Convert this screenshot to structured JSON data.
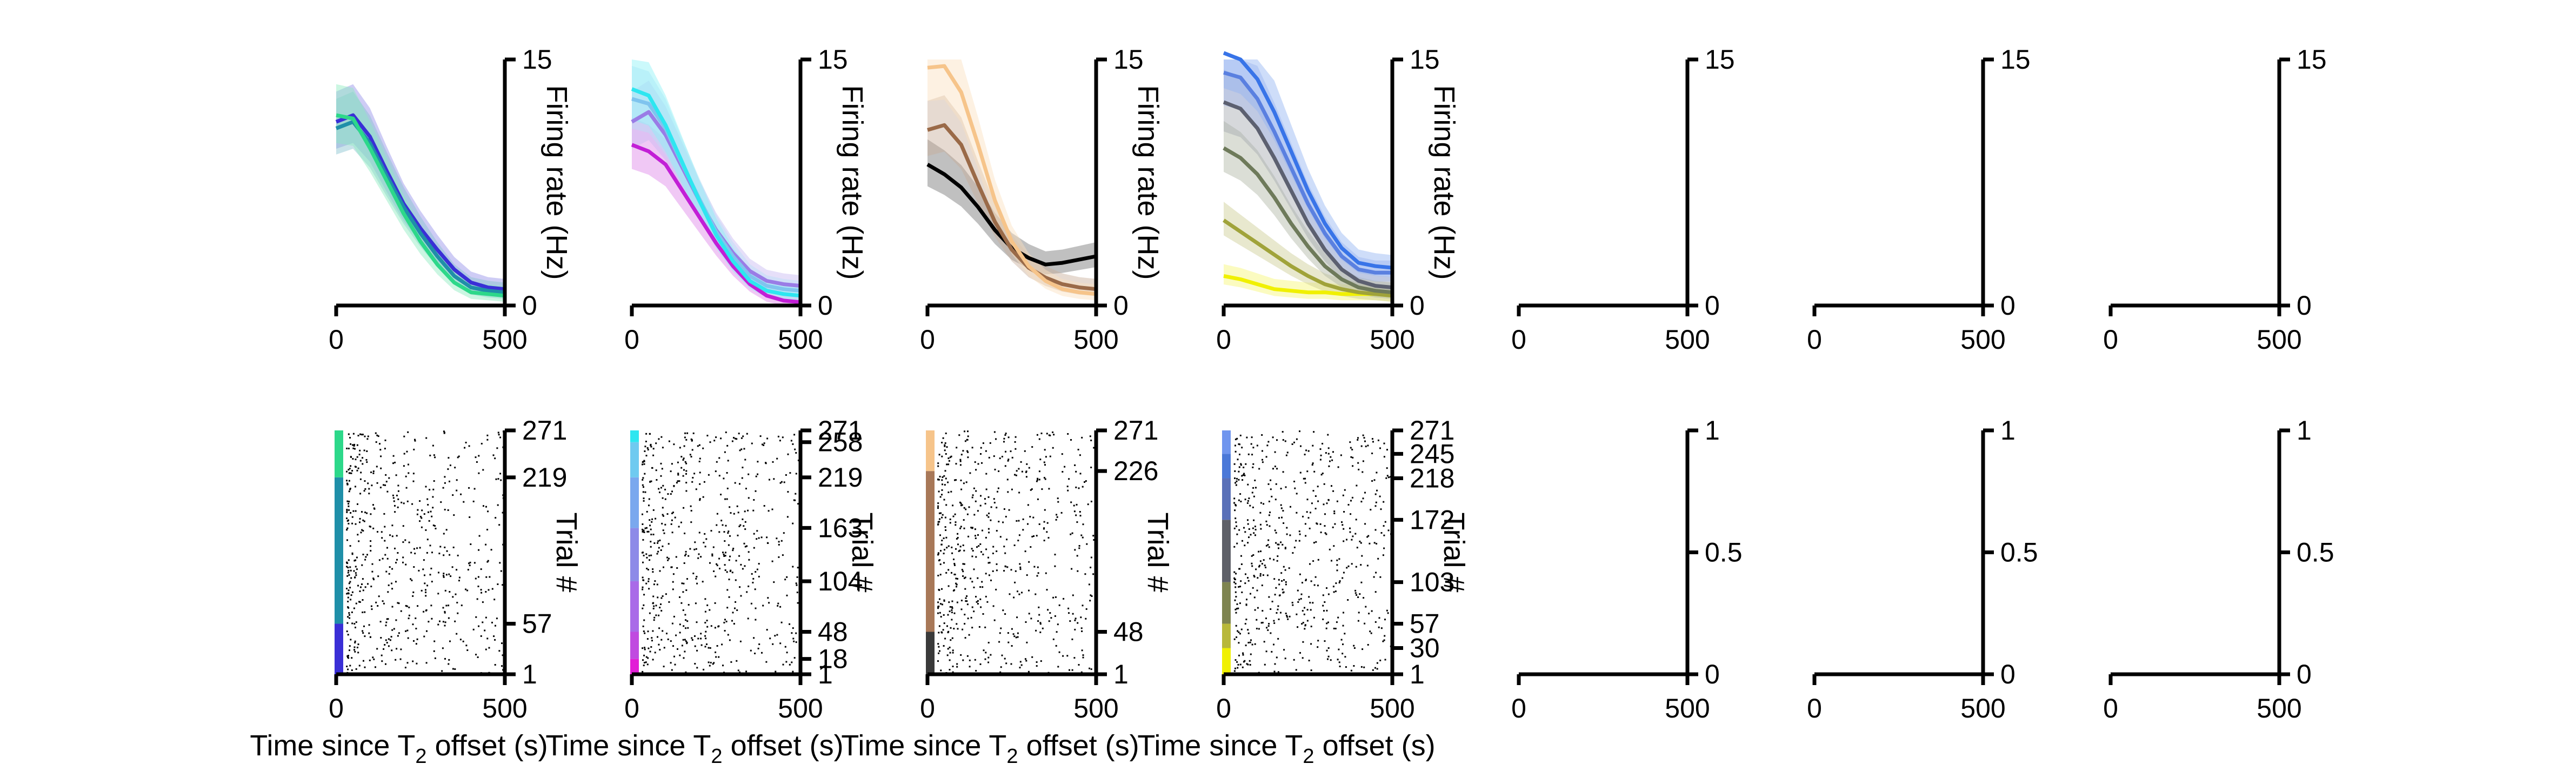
{
  "labels": {
    "ylabel_rate": "Firing rate (Hz)",
    "ylabel_trial": "Trial #",
    "xlabel_prefix": "Time since T",
    "xlabel_sub": "2",
    "xlabel_suffix": " offset (s)"
  },
  "chart_data": [
    {
      "type": "line",
      "panel": "rate-1",
      "xlim": [
        0,
        500
      ],
      "ylim": [
        0,
        15
      ],
      "xticks": [
        "0",
        "500"
      ],
      "yticks": [
        "0",
        "15"
      ],
      "ylabel": "Firing rate (Hz)",
      "x": [
        0,
        50,
        100,
        150,
        200,
        250,
        300,
        350,
        400,
        450,
        500
      ],
      "series": [
        {
          "color": "#3a2fd6",
          "values": [
            11.2,
            11.6,
            10.3,
            8.2,
            6.2,
            4.7,
            3.4,
            2.2,
            1.4,
            1.1,
            1.0
          ]
        },
        {
          "color": "#1f8fa8",
          "values": [
            10.8,
            11.2,
            9.9,
            7.9,
            6.0,
            4.4,
            3.0,
            1.8,
            1.1,
            0.9,
            0.8
          ]
        },
        {
          "color": "#2dd88a",
          "values": [
            11.6,
            11.4,
            9.6,
            7.6,
            5.6,
            3.9,
            2.5,
            1.4,
            0.8,
            0.7,
            0.6
          ]
        }
      ]
    },
    {
      "type": "line",
      "panel": "rate-2",
      "xlim": [
        0,
        500
      ],
      "ylim": [
        0,
        15
      ],
      "xticks": [
        "0",
        "500"
      ],
      "yticks": [
        "0",
        "15"
      ],
      "ylabel": "Firing rate (Hz)",
      "x": [
        0,
        50,
        100,
        150,
        200,
        250,
        300,
        350,
        400,
        450,
        500
      ],
      "series": [
        {
          "color": "#c21fd6",
          "values": [
            9.8,
            9.4,
            8.6,
            7.0,
            5.4,
            3.8,
            2.4,
            1.3,
            0.6,
            0.3,
            0.2
          ]
        },
        {
          "color": "#9a7ce6",
          "values": [
            11.2,
            11.8,
            10.4,
            8.4,
            6.4,
            4.6,
            3.2,
            2.1,
            1.5,
            1.3,
            1.2
          ]
        },
        {
          "color": "#7fc4ee",
          "values": [
            12.6,
            12.3,
            10.8,
            8.6,
            6.5,
            4.5,
            3.0,
            1.8,
            1.2,
            1.0,
            0.9
          ]
        },
        {
          "color": "#2ee6f0",
          "values": [
            13.2,
            12.8,
            11.0,
            8.7,
            6.4,
            4.3,
            2.7,
            1.5,
            0.9,
            0.7,
            0.6
          ]
        }
      ]
    },
    {
      "type": "line",
      "panel": "rate-3",
      "xlim": [
        0,
        500
      ],
      "ylim": [
        0,
        15
      ],
      "xticks": [
        "0",
        "500"
      ],
      "yticks": [
        "0",
        "15"
      ],
      "ylabel": "Firing rate (Hz)",
      "x": [
        0,
        50,
        100,
        150,
        200,
        250,
        300,
        350,
        400,
        450,
        500
      ],
      "series": [
        {
          "color": "#000000",
          "values": [
            8.6,
            8.0,
            7.2,
            6.0,
            4.6,
            3.5,
            2.9,
            2.5,
            2.6,
            2.8,
            3.0
          ]
        },
        {
          "color": "#9a6a48",
          "values": [
            10.7,
            11.0,
            9.8,
            7.4,
            5.1,
            3.4,
            2.3,
            1.7,
            1.3,
            1.1,
            1.0
          ]
        },
        {
          "color": "#f6c48a",
          "values": [
            14.5,
            14.6,
            13.0,
            9.8,
            6.4,
            3.9,
            2.4,
            1.5,
            1.0,
            0.8,
            0.7
          ]
        }
      ]
    },
    {
      "type": "line",
      "panel": "rate-4",
      "xlim": [
        0,
        500
      ],
      "ylim": [
        0,
        15
      ],
      "xticks": [
        "0",
        "500"
      ],
      "yticks": [
        "0",
        "15"
      ],
      "ylabel": "Firing rate (Hz)",
      "x": [
        0,
        50,
        100,
        150,
        200,
        250,
        300,
        350,
        400,
        450,
        500
      ],
      "series": [
        {
          "color": "#f0f000",
          "values": [
            1.8,
            1.6,
            1.3,
            1.0,
            0.9,
            0.8,
            0.8,
            0.7,
            0.7,
            0.7,
            0.6
          ]
        },
        {
          "color": "#a0a33a",
          "values": [
            5.2,
            4.5,
            3.8,
            3.1,
            2.4,
            1.8,
            1.3,
            1.0,
            0.8,
            0.7,
            0.6
          ]
        },
        {
          "color": "#6e7a5a",
          "values": [
            9.6,
            9.0,
            8.0,
            6.6,
            5.0,
            3.6,
            2.4,
            1.6,
            1.1,
            0.9,
            0.8
          ]
        },
        {
          "color": "#5c6070",
          "values": [
            12.4,
            12.0,
            10.8,
            9.0,
            7.0,
            5.0,
            3.4,
            2.2,
            1.5,
            1.2,
            1.1
          ]
        },
        {
          "color": "#5a80e0",
          "values": [
            14.2,
            13.9,
            12.6,
            10.6,
            8.4,
            6.2,
            4.4,
            3.0,
            2.2,
            2.0,
            2.0
          ]
        },
        {
          "color": "#3874e8",
          "values": [
            15.4,
            15.0,
            13.8,
            11.8,
            9.4,
            7.0,
            5.0,
            3.5,
            2.6,
            2.4,
            2.3
          ]
        }
      ]
    },
    {
      "type": "line",
      "panel": "rate-5",
      "empty": true,
      "xlim": [
        0,
        500
      ],
      "ylim": [
        0,
        15
      ],
      "xticks": [
        "0",
        "500"
      ],
      "yticks": [
        "0",
        "15"
      ],
      "series": []
    },
    {
      "type": "line",
      "panel": "rate-6",
      "empty": true,
      "xlim": [
        0,
        500
      ],
      "ylim": [
        0,
        15
      ],
      "xticks": [
        "0",
        "500"
      ],
      "yticks": [
        "0",
        "15"
      ],
      "series": []
    },
    {
      "type": "line",
      "panel": "rate-7",
      "empty": true,
      "xlim": [
        0,
        500
      ],
      "ylim": [
        0,
        15
      ],
      "xticks": [
        "0",
        "500"
      ],
      "yticks": [
        "0",
        "15"
      ],
      "series": []
    },
    {
      "type": "scatter",
      "panel": "raster-1",
      "xlim": [
        0,
        500
      ],
      "ylim": [
        1,
        271
      ],
      "xticks": [
        "0",
        "500"
      ],
      "yticks": [
        "1",
        "57",
        "219",
        "271"
      ],
      "ylabel": "Trial #",
      "condition_bands": [
        {
          "from": 1,
          "to": 57,
          "color": "#3a2fd6"
        },
        {
          "from": 57,
          "to": 219,
          "color": "#1f8fa8"
        },
        {
          "from": 219,
          "to": 271,
          "color": "#2dd88a"
        }
      ]
    },
    {
      "type": "scatter",
      "panel": "raster-2",
      "xlim": [
        0,
        500
      ],
      "ylim": [
        1,
        271
      ],
      "xticks": [
        "0",
        "500"
      ],
      "yticks": [
        "1",
        "18",
        "48",
        "104",
        "163",
        "219",
        "258",
        "271"
      ],
      "ylabel": "Trial #",
      "condition_bands": [
        {
          "from": 1,
          "to": 18,
          "color": "#e21ed6"
        },
        {
          "from": 18,
          "to": 48,
          "color": "#c04ae0"
        },
        {
          "from": 48,
          "to": 104,
          "color": "#a96ae8"
        },
        {
          "from": 104,
          "to": 163,
          "color": "#8d8ae8"
        },
        {
          "from": 163,
          "to": 219,
          "color": "#7aa8ee"
        },
        {
          "from": 219,
          "to": 258,
          "color": "#6fcaf0"
        },
        {
          "from": 258,
          "to": 271,
          "color": "#2ee6f0"
        }
      ]
    },
    {
      "type": "scatter",
      "panel": "raster-3",
      "xlim": [
        0,
        500
      ],
      "ylim": [
        1,
        271
      ],
      "xticks": [
        "0",
        "500"
      ],
      "yticks": [
        "1",
        "48",
        "226",
        "271"
      ],
      "ylabel": "Trial #",
      "condition_bands": [
        {
          "from": 1,
          "to": 48,
          "color": "#3a3a3a"
        },
        {
          "from": 48,
          "to": 226,
          "color": "#a87858"
        },
        {
          "from": 226,
          "to": 271,
          "color": "#f6c48a"
        }
      ]
    },
    {
      "type": "scatter",
      "panel": "raster-4",
      "xlim": [
        0,
        500
      ],
      "ylim": [
        1,
        271
      ],
      "xticks": [
        "0",
        "500"
      ],
      "yticks": [
        "1",
        "30",
        "57",
        "103",
        "172",
        "218",
        "245",
        "271"
      ],
      "ylabel": "Trial #",
      "condition_bands": [
        {
          "from": 1,
          "to": 30,
          "color": "#f0f000"
        },
        {
          "from": 30,
          "to": 57,
          "color": "#b8b83a"
        },
        {
          "from": 57,
          "to": 103,
          "color": "#7e8450"
        },
        {
          "from": 103,
          "to": 172,
          "color": "#5e6068"
        },
        {
          "from": 172,
          "to": 218,
          "color": "#5a70b8"
        },
        {
          "from": 218,
          "to": 245,
          "color": "#4a78d8"
        },
        {
          "from": 245,
          "to": 271,
          "color": "#6f95ee"
        }
      ]
    },
    {
      "type": "scatter",
      "panel": "raster-5",
      "empty": true,
      "xlim": [
        0,
        500
      ],
      "ylim": [
        0,
        1
      ],
      "xticks": [
        "0",
        "500"
      ],
      "yticks": [
        "0",
        "0.5",
        "1"
      ]
    },
    {
      "type": "scatter",
      "panel": "raster-6",
      "empty": true,
      "xlim": [
        0,
        500
      ],
      "ylim": [
        0,
        1
      ],
      "xticks": [
        "0",
        "500"
      ],
      "yticks": [
        "0",
        "0.5",
        "1"
      ]
    },
    {
      "type": "scatter",
      "panel": "raster-7",
      "empty": true,
      "xlim": [
        0,
        500
      ],
      "ylim": [
        0,
        1
      ],
      "xticks": [
        "0",
        "500"
      ],
      "yticks": [
        "0",
        "0.5",
        "1"
      ]
    }
  ]
}
